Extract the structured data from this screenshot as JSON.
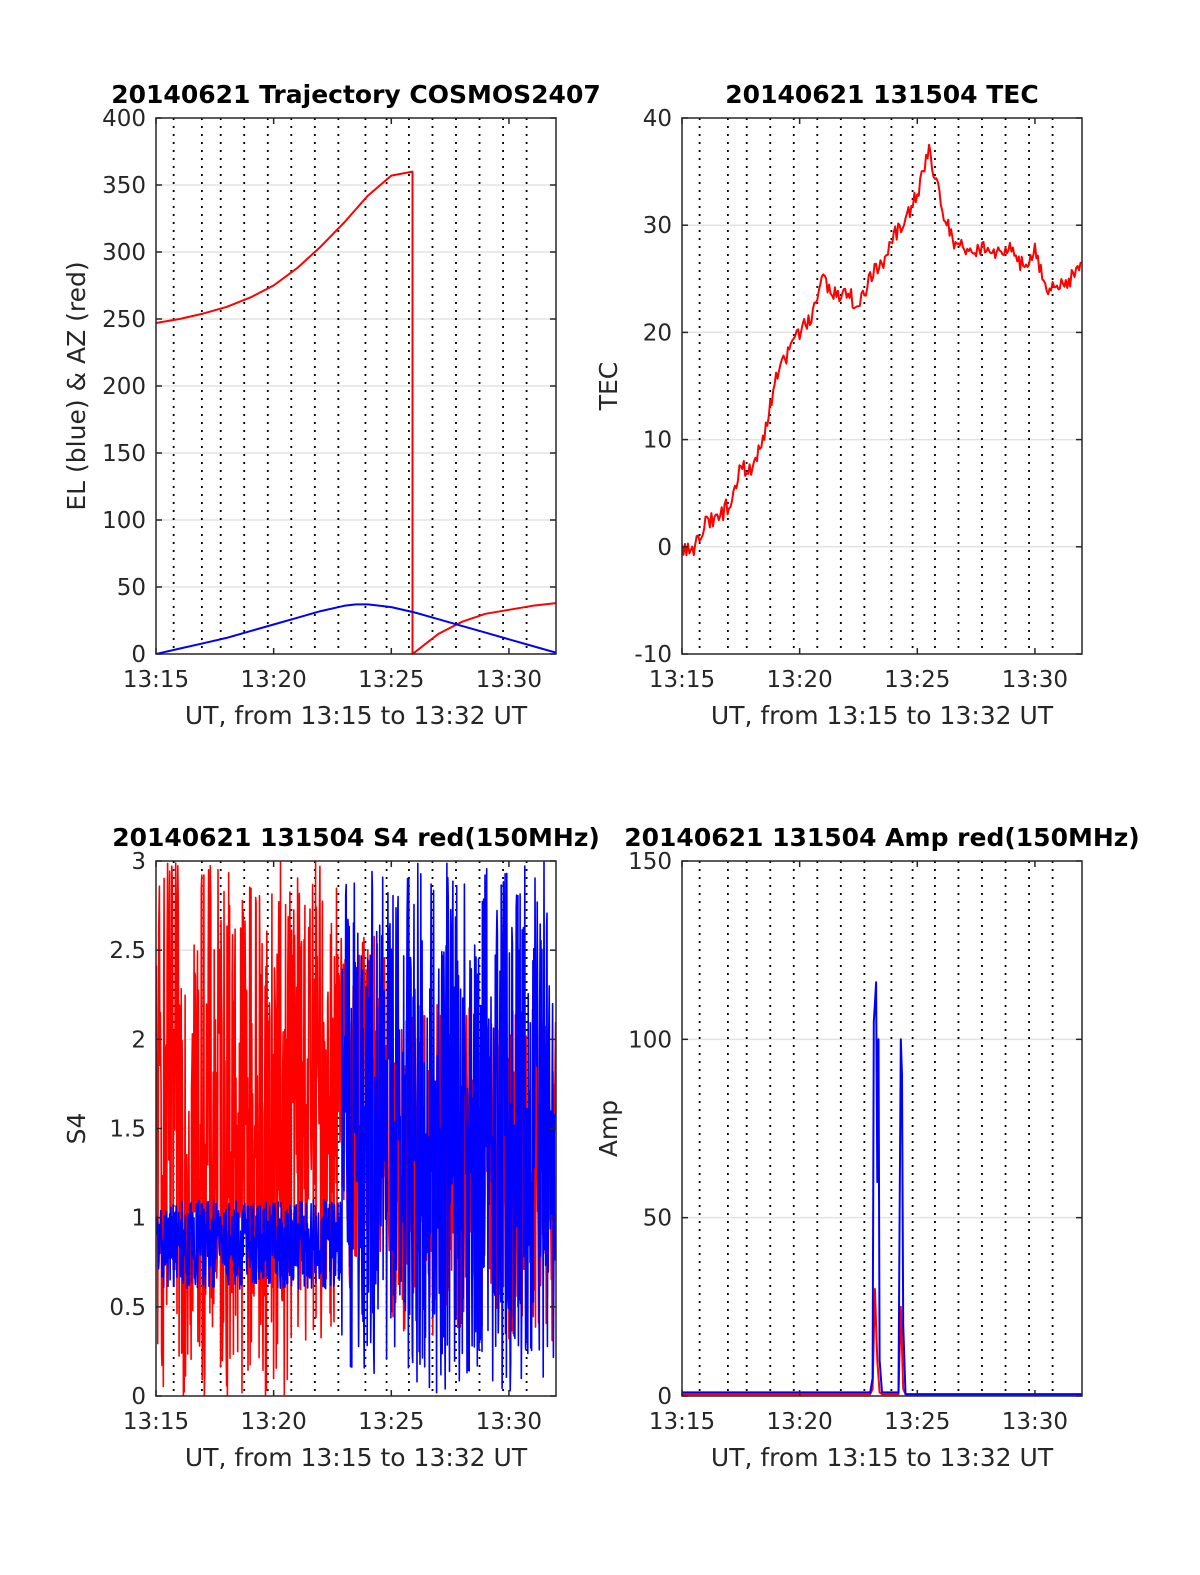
{
  "chart_data": [
    {
      "id": "trajectory",
      "type": "line",
      "title": "20140621 Trajectory COSMOS2407",
      "xlabel": "UT, from 13:15 to 13:32 UT",
      "ylabel": "EL (blue) & AZ (red)",
      "xlim": [
        0,
        17
      ],
      "ylim": [
        0,
        400
      ],
      "xticks": [
        0,
        5,
        10,
        15
      ],
      "xticklabels": [
        "13:15",
        "13:20",
        "13:25",
        "13:30"
      ],
      "yticks": [
        0,
        50,
        100,
        150,
        200,
        250,
        300,
        350,
        400
      ],
      "yticklabels": [
        "0",
        "50",
        "100",
        "150",
        "200",
        "250",
        "300",
        "350",
        "400"
      ],
      "grid": true,
      "series": [
        {
          "color": "#ff0000",
          "kind": "line",
          "x": [
            0,
            1,
            2,
            3,
            4,
            5,
            6,
            7,
            8,
            9,
            10,
            10.9,
            10.9,
            12,
            13,
            14,
            15,
            16,
            17
          ],
          "y": [
            247,
            250,
            254,
            259,
            266,
            275,
            288,
            304,
            322,
            342,
            357,
            360,
            0,
            15,
            24,
            30,
            33,
            36,
            38
          ]
        },
        {
          "color": "#0000ff",
          "kind": "line",
          "x": [
            0,
            1,
            2,
            3,
            4,
            5,
            6,
            7,
            8,
            8.5,
            9,
            10,
            11,
            12,
            13,
            14,
            15,
            16,
            17
          ],
          "y": [
            0,
            4,
            8,
            12,
            17,
            22,
            27,
            32,
            36,
            37,
            37,
            35,
            31,
            26,
            21,
            16,
            11,
            6,
            1
          ]
        }
      ]
    },
    {
      "id": "tec",
      "type": "line",
      "title": "20140621 131504 TEC",
      "xlabel": "UT, from 13:15 to 13:32 UT",
      "ylabel": "TEC",
      "xlim": [
        0,
        17
      ],
      "ylim": [
        -10,
        40
      ],
      "xticks": [
        0,
        5,
        10,
        15
      ],
      "xticklabels": [
        "13:15",
        "13:20",
        "13:25",
        "13:30"
      ],
      "yticks": [
        -10,
        0,
        10,
        20,
        30,
        40
      ],
      "yticklabels": [
        "-10",
        "0",
        "10",
        "20",
        "30",
        "40"
      ],
      "grid": true,
      "series": [
        {
          "color": "#ff0000",
          "kind": "line",
          "x": [
            0,
            0.5,
            1,
            1.5,
            2,
            2.5,
            3,
            3.5,
            4,
            4.5,
            5,
            5.5,
            6,
            6.5,
            7,
            7.5,
            8,
            8.5,
            9,
            9.5,
            10,
            10.5,
            11,
            11.5,
            12,
            12.5,
            13,
            13.5,
            14,
            14.5,
            15,
            15.5,
            16,
            16.5,
            17
          ],
          "y": [
            0,
            -0.5,
            2.5,
            2.5,
            4,
            7.5,
            7,
            10.5,
            15.5,
            18,
            20,
            21.5,
            25,
            23.5,
            24,
            22,
            25.5,
            26,
            29,
            30.5,
            33,
            37,
            32,
            28.5,
            28,
            27.5,
            28,
            27.5,
            28,
            26,
            27.5,
            24,
            24.5,
            25,
            26.5
          ]
        }
      ]
    },
    {
      "id": "s4",
      "type": "line",
      "title": "20140621 131504 S4 red(150MHz)",
      "xlabel": "UT, from 13:15 to 13:32 UT",
      "ylabel": "S4",
      "xlim": [
        0,
        17
      ],
      "ylim": [
        0,
        3
      ],
      "xticks": [
        0,
        5,
        10,
        15
      ],
      "xticklabels": [
        "13:15",
        "13:20",
        "13:25",
        "13:30"
      ],
      "yticks": [
        0,
        0.5,
        1,
        1.5,
        2,
        2.5,
        3
      ],
      "yticklabels": [
        "0",
        "0.5",
        "1",
        "1.5",
        "2",
        "2.5",
        "3"
      ],
      "grid": true,
      "series": [
        {
          "color": "#ff0000",
          "kind": "noise",
          "segments": [
            {
              "x0": 0,
              "x1": 5.6,
              "lo": 0,
              "hi": 3
            },
            {
              "x0": 5.6,
              "x1": 7.8,
              "lo": 0.3,
              "hi": 3
            },
            {
              "x0": 7.8,
              "x1": 10,
              "lo": 0.6,
              "hi": 2.6
            },
            {
              "x0": 10,
              "x1": 17,
              "lo": 0.3,
              "hi": 2.2
            }
          ]
        },
        {
          "color": "#0000ff",
          "kind": "noise",
          "segments": [
            {
              "x0": 0,
              "x1": 7.9,
              "lo": 0.6,
              "hi": 1.1
            },
            {
              "x0": 7.9,
              "x1": 10,
              "lo": 0.1,
              "hi": 3
            },
            {
              "x0": 10,
              "x1": 17,
              "lo": 0,
              "hi": 3
            }
          ]
        }
      ]
    },
    {
      "id": "amp",
      "type": "line",
      "title": "20140621 131504 Amp red(150MHz)",
      "xlabel": "UT, from 13:15 to 13:32 UT",
      "ylabel": "Amp",
      "xlim": [
        0,
        17
      ],
      "ylim": [
        0,
        150
      ],
      "xticks": [
        0,
        5,
        10,
        15
      ],
      "xticklabels": [
        "13:15",
        "13:20",
        "13:25",
        "13:30"
      ],
      "yticks": [
        0,
        50,
        100,
        150
      ],
      "yticklabels": [
        "0",
        "50",
        "100",
        "150"
      ],
      "grid": true,
      "series": [
        {
          "color": "#ff0000",
          "kind": "line",
          "x": [
            0,
            8.0,
            8.1,
            8.2,
            8.3,
            8.4,
            8.5,
            9.2,
            9.3,
            9.4,
            9.5,
            17
          ],
          "y": [
            0.5,
            0.5,
            2,
            30,
            10,
            1,
            0.5,
            0.5,
            25,
            2,
            0.5,
            0.5
          ]
        },
        {
          "color": "#0000ff",
          "kind": "line",
          "x": [
            0,
            8.0,
            8.1,
            8.15,
            8.2,
            8.25,
            8.3,
            8.35,
            8.4,
            8.5,
            9.2,
            9.25,
            9.3,
            9.35,
            9.4,
            9.5,
            17
          ],
          "y": [
            1,
            1,
            5,
            105,
            110,
            116,
            60,
            100,
            10,
            1,
            1,
            50,
            100,
            90,
            20,
            0.5,
            0.5
          ]
        }
      ]
    }
  ]
}
